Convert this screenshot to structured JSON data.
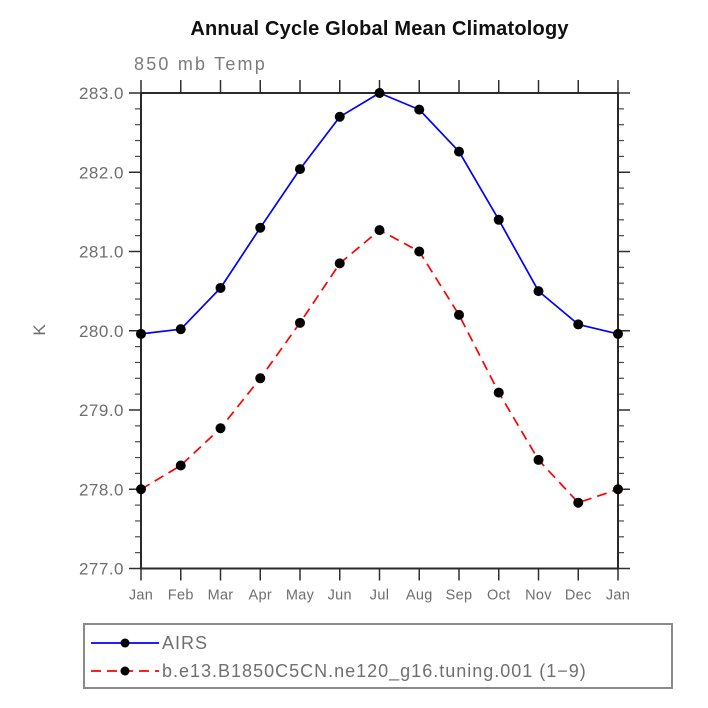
{
  "chart_data": {
    "type": "line",
    "title": "Annual Cycle Global Mean Climatology",
    "subtitle": "850 mb Temp",
    "ylabel": "K",
    "x_categories": [
      "Jan",
      "Feb",
      "Mar",
      "Apr",
      "May",
      "Jun",
      "Jul",
      "Aug",
      "Sep",
      "Oct",
      "Nov",
      "Dec",
      "Jan"
    ],
    "ylim": [
      277.0,
      283.0
    ],
    "ytick_major": 1.0,
    "ytick_minor": 0.2,
    "ytick_labels": [
      "277.0",
      "278.0",
      "279.0",
      "280.0",
      "281.0",
      "282.0",
      "283.0"
    ],
    "grid": false,
    "legend_position": "bottom",
    "series": [
      {
        "name": "AIRS",
        "color": "#0000ff",
        "line_style": "solid",
        "marker": "circle",
        "marker_color": "#000000",
        "values": [
          279.96,
          280.02,
          280.54,
          281.3,
          282.04,
          282.7,
          283.0,
          282.79,
          282.26,
          281.4,
          280.5,
          280.08,
          279.96
        ]
      },
      {
        "name": "b.e13.B1850C5CN.ne120_g16.tuning.001 (1−9)",
        "color": "#ff0000",
        "line_style": "dashed",
        "marker": "circle",
        "marker_color": "#000000",
        "values": [
          278.0,
          278.3,
          278.77,
          279.4,
          280.1,
          280.85,
          281.27,
          281.0,
          280.2,
          279.22,
          278.37,
          277.83,
          278.0
        ]
      }
    ],
    "colors": {
      "frame": "#2a2a2a",
      "tick": "#2f2f2f",
      "minor_tick": "#4a4a4a",
      "tick_label": "#6e6e6e",
      "title": "#101010",
      "subtitle": "#7b7b7b",
      "legend_border": "#8a8a8a",
      "legend_text": "#6f6f6f"
    }
  }
}
